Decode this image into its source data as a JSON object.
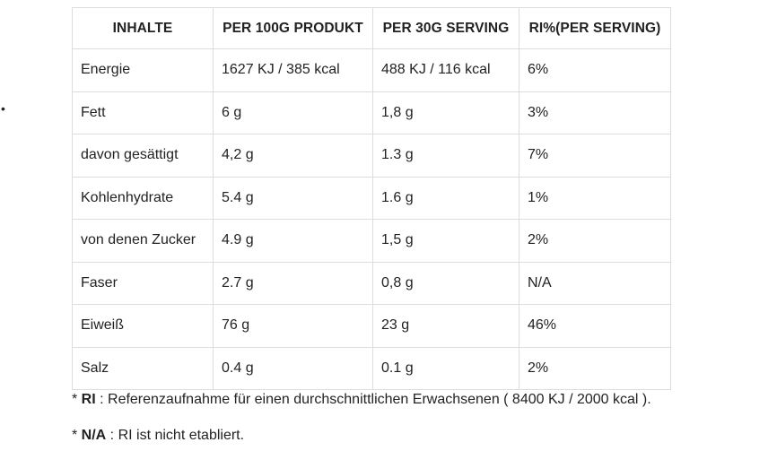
{
  "bullet": "•",
  "table": {
    "headers": [
      "INHALTE",
      "PER 100G PRODUKT",
      "PER 30G SERVING",
      "RI%(PER SERVING)"
    ],
    "rows": [
      [
        "Energie",
        "1627 KJ / 385 kcal",
        "488 KJ / 116 kcal",
        "6%"
      ],
      [
        "Fett",
        "6 g",
        "1,8 g",
        "3%"
      ],
      [
        "davon gesättigt",
        "4,2 g",
        "1.3 g",
        "7%"
      ],
      [
        "Kohlenhydrate",
        "5.4 g",
        "1.6 g",
        "1%"
      ],
      [
        "von denen Zucker",
        "4.9 g",
        "1,5 g",
        "2%"
      ],
      [
        "Faser",
        "2.7 g",
        "0,8 g",
        "N/A"
      ],
      [
        "Eiweiß",
        "76 g",
        "23 g",
        "46%"
      ],
      [
        "Salz",
        "0.4 g",
        "0.1 g",
        "2%"
      ]
    ]
  },
  "notes": {
    "ri": {
      "prefix": "* ",
      "term": "RI",
      "text": " : Referenzaufnahme für einen durchschnittlichen Erwachsenen ( 8400 KJ / 2000 kcal )."
    },
    "na": {
      "prefix": "* ",
      "term": "N/A",
      "text": " : RI ist nicht etabliert."
    }
  }
}
